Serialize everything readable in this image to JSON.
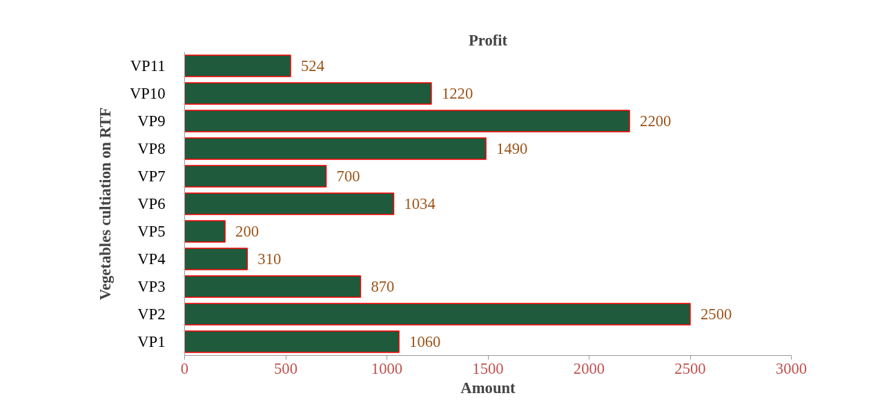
{
  "chart_data": {
    "type": "bar",
    "orientation": "horizontal",
    "title": "Profit",
    "xlabel": "Amount",
    "ylabel": "Vegetables cultiation on RTF",
    "categories": [
      "VP11",
      "VP10",
      "VP9",
      "VP8",
      "VP7",
      "VP6",
      "VP5",
      "VP4",
      "VP3",
      "VP2",
      "VP1"
    ],
    "values": [
      524,
      1220,
      2200,
      1490,
      700,
      1034,
      200,
      310,
      870,
      2500,
      1060
    ],
    "color": "#1f5a3c",
    "xlim": [
      0,
      3000
    ],
    "xticks": [
      0,
      500,
      1000,
      1500,
      2000,
      2500,
      3000
    ],
    "data_labels": true,
    "grid": false
  }
}
